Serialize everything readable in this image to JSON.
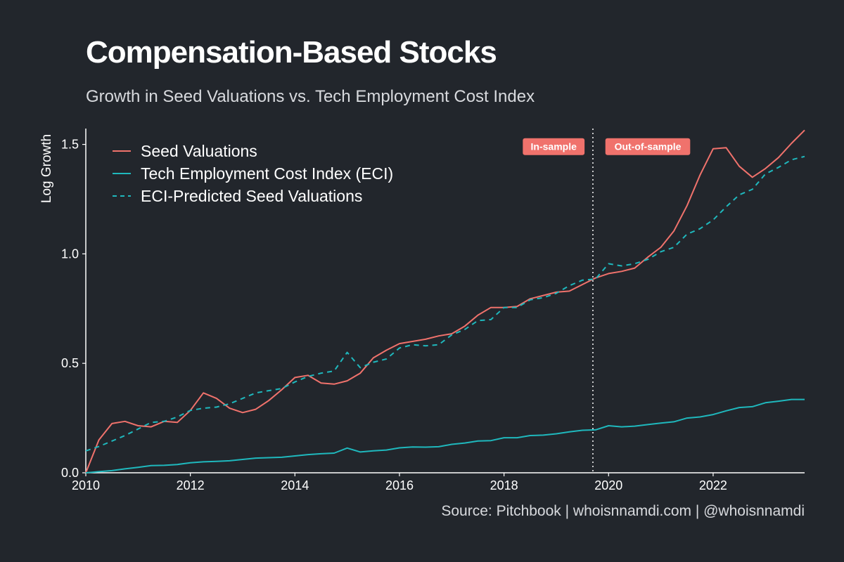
{
  "title": "Compensation-Based Stocks",
  "subtitle": "Growth in Seed Valuations vs. Tech Employment Cost Index",
  "source": "Source: Pitchbook | whoisnnamdi.com | @whoisnnamdi",
  "colors": {
    "background": "#22262c",
    "seed": "#f0726c",
    "eci": "#1fb8bd",
    "annotation_bg": "#f0726c",
    "divider": "#ffffff"
  },
  "chart_data": {
    "type": "line",
    "title": "Compensation-Based Stocks",
    "subtitle": "Growth in Seed Valuations vs. Tech Employment Cost Index",
    "xlabel": "",
    "ylabel": "Log Growth",
    "xlim": [
      2010,
      2023.75
    ],
    "ylim": [
      0,
      1.55
    ],
    "xticks": [
      2010,
      2012,
      2014,
      2016,
      2018,
      2020,
      2022
    ],
    "yticks": [
      0.0,
      0.5,
      1.0,
      1.5
    ],
    "ytick_labels": [
      "0.0",
      "0.5",
      "1.0",
      "1.5"
    ],
    "legend_position": "top-left",
    "grid": false,
    "divider_x": 2019.7,
    "annotations": [
      {
        "text": "In-sample",
        "x": 2018.95,
        "y": 1.49
      },
      {
        "text": "Out-of-sample",
        "x": 2020.75,
        "y": 1.49
      }
    ],
    "series": [
      {
        "name": "Seed Valuations",
        "style": "solid",
        "x": [
          2010.0,
          2010.25,
          2010.5,
          2010.75,
          2011.0,
          2011.25,
          2011.5,
          2011.75,
          2012.0,
          2012.25,
          2012.5,
          2012.75,
          2013.0,
          2013.25,
          2013.5,
          2013.75,
          2014.0,
          2014.25,
          2014.5,
          2014.75,
          2015.0,
          2015.25,
          2015.5,
          2015.75,
          2016.0,
          2016.25,
          2016.5,
          2016.75,
          2017.0,
          2017.25,
          2017.5,
          2017.75,
          2018.0,
          2018.25,
          2018.5,
          2018.75,
          2019.0,
          2019.25,
          2019.5,
          2019.75,
          2020.0,
          2020.25,
          2020.5,
          2020.75,
          2021.0,
          2021.25,
          2021.5,
          2021.75,
          2022.0,
          2022.25,
          2022.5,
          2022.75,
          2023.0,
          2023.25,
          2023.5,
          2023.75
        ],
        "values": [
          0.0,
          0.15,
          0.225,
          0.235,
          0.215,
          0.21,
          0.235,
          0.23,
          0.285,
          0.365,
          0.34,
          0.295,
          0.275,
          0.29,
          0.33,
          0.38,
          0.435,
          0.445,
          0.41,
          0.405,
          0.42,
          0.455,
          0.525,
          0.56,
          0.59,
          0.6,
          0.61,
          0.625,
          0.635,
          0.67,
          0.72,
          0.755,
          0.755,
          0.76,
          0.795,
          0.81,
          0.825,
          0.83,
          0.86,
          0.89,
          0.91,
          0.92,
          0.935,
          0.985,
          1.03,
          1.105,
          1.22,
          1.36,
          1.48,
          1.485,
          1.4,
          1.35,
          1.39,
          1.44,
          1.505,
          1.565
        ]
      },
      {
        "name": "Tech Employment Cost Index (ECI)",
        "style": "solid",
        "x": [
          2010.0,
          2010.25,
          2010.5,
          2010.75,
          2011.0,
          2011.25,
          2011.5,
          2011.75,
          2012.0,
          2012.25,
          2012.5,
          2012.75,
          2013.0,
          2013.25,
          2013.5,
          2013.75,
          2014.0,
          2014.25,
          2014.5,
          2014.75,
          2015.0,
          2015.25,
          2015.5,
          2015.75,
          2016.0,
          2016.25,
          2016.5,
          2016.75,
          2017.0,
          2017.25,
          2017.5,
          2017.75,
          2018.0,
          2018.25,
          2018.5,
          2018.75,
          2019.0,
          2019.25,
          2019.5,
          2019.75,
          2020.0,
          2020.25,
          2020.5,
          2020.75,
          2021.0,
          2021.25,
          2021.5,
          2021.75,
          2022.0,
          2022.25,
          2022.5,
          2022.75,
          2023.0,
          2023.25,
          2023.5,
          2023.75
        ],
        "values": [
          0.0,
          0.005,
          0.01,
          0.018,
          0.025,
          0.033,
          0.034,
          0.038,
          0.046,
          0.05,
          0.052,
          0.055,
          0.061,
          0.067,
          0.069,
          0.071,
          0.077,
          0.083,
          0.087,
          0.09,
          0.113,
          0.095,
          0.1,
          0.104,
          0.114,
          0.118,
          0.117,
          0.119,
          0.13,
          0.136,
          0.145,
          0.147,
          0.16,
          0.16,
          0.17,
          0.172,
          0.178,
          0.187,
          0.194,
          0.196,
          0.215,
          0.21,
          0.213,
          0.22,
          0.227,
          0.233,
          0.25,
          0.255,
          0.266,
          0.283,
          0.298,
          0.302,
          0.32,
          0.327,
          0.335,
          0.335
        ]
      },
      {
        "name": "ECI-Predicted Seed Valuations",
        "style": "dashed",
        "x": [
          2010.0,
          2010.25,
          2010.5,
          2010.75,
          2011.0,
          2011.25,
          2011.5,
          2011.75,
          2012.0,
          2012.25,
          2012.5,
          2012.75,
          2013.0,
          2013.25,
          2013.5,
          2013.75,
          2014.0,
          2014.25,
          2014.5,
          2014.75,
          2015.0,
          2015.25,
          2015.5,
          2015.75,
          2016.0,
          2016.25,
          2016.5,
          2016.75,
          2017.0,
          2017.25,
          2017.5,
          2017.75,
          2018.0,
          2018.25,
          2018.5,
          2018.75,
          2019.0,
          2019.25,
          2019.5,
          2019.75,
          2020.0,
          2020.25,
          2020.5,
          2020.75,
          2021.0,
          2021.25,
          2021.5,
          2021.75,
          2022.0,
          2022.25,
          2022.5,
          2022.75,
          2023.0,
          2023.25,
          2023.5,
          2023.75
        ],
        "values": [
          0.1,
          0.12,
          0.145,
          0.17,
          0.2,
          0.23,
          0.235,
          0.255,
          0.285,
          0.295,
          0.3,
          0.315,
          0.34,
          0.365,
          0.375,
          0.385,
          0.415,
          0.44,
          0.455,
          0.465,
          0.55,
          0.48,
          0.505,
          0.52,
          0.57,
          0.585,
          0.58,
          0.585,
          0.63,
          0.655,
          0.695,
          0.7,
          0.755,
          0.755,
          0.79,
          0.8,
          0.82,
          0.855,
          0.88,
          0.885,
          0.955,
          0.945,
          0.955,
          0.975,
          1.01,
          1.03,
          1.09,
          1.115,
          1.155,
          1.215,
          1.27,
          1.295,
          1.365,
          1.395,
          1.43,
          1.445
        ]
      }
    ]
  }
}
